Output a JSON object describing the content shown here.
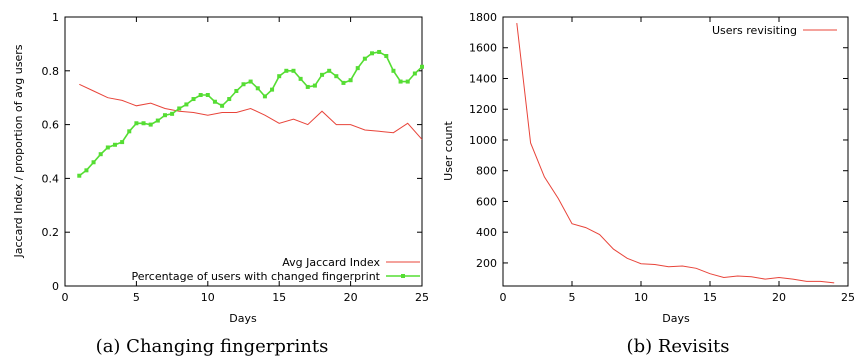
{
  "chart_data": [
    {
      "type": "line",
      "caption": "(a) Changing fingerprints",
      "xlabel": "Days",
      "ylabel": "Jaccard Index / proportion of avg users",
      "xlim": [
        0,
        25
      ],
      "ylim": [
        0,
        1
      ],
      "xticks": [
        "0",
        "5",
        "10",
        "15",
        "20",
        "25"
      ],
      "yticks": [
        "0",
        "0.2",
        "0.4",
        "0.6",
        "0.8",
        "1"
      ],
      "grid": false,
      "legend_position": "bottom-right",
      "series": [
        {
          "name": "Avg Jaccard Index",
          "color": "#e8443a",
          "marker": "none",
          "x": [
            1,
            2,
            3,
            4,
            5,
            6,
            7,
            8,
            9,
            10,
            11,
            12,
            13,
            14,
            15,
            16,
            17,
            18,
            19,
            20,
            21,
            22,
            23,
            24,
            25
          ],
          "y": [
            0.75,
            0.725,
            0.7,
            0.69,
            0.67,
            0.68,
            0.66,
            0.65,
            0.645,
            0.635,
            0.645,
            0.645,
            0.66,
            0.635,
            0.605,
            0.62,
            0.6,
            0.65,
            0.6,
            0.6,
            0.58,
            0.575,
            0.57,
            0.605,
            0.545
          ]
        },
        {
          "name": "Percentage of users with changed fingerprint",
          "color": "#55dd33",
          "marker": "square",
          "x": [
            1,
            1.5,
            2,
            2.5,
            3,
            3.5,
            4,
            4.5,
            5,
            5.5,
            6,
            6.5,
            7,
            7.5,
            8,
            8.5,
            9,
            9.5,
            10,
            10.5,
            11,
            11.5,
            12,
            12.5,
            13,
            13.5,
            14,
            14.5,
            15,
            15.5,
            16,
            16.5,
            17,
            17.5,
            18,
            18.5,
            19,
            19.5,
            20,
            20.5,
            21,
            21.5,
            22,
            22.5,
            23,
            23.5,
            24,
            24.5,
            25
          ],
          "y": [
            0.41,
            0.43,
            0.46,
            0.49,
            0.515,
            0.525,
            0.535,
            0.575,
            0.605,
            0.605,
            0.6,
            0.615,
            0.635,
            0.64,
            0.66,
            0.675,
            0.695,
            0.71,
            0.71,
            0.685,
            0.67,
            0.695,
            0.725,
            0.75,
            0.76,
            0.735,
            0.705,
            0.73,
            0.78,
            0.8,
            0.8,
            0.77,
            0.74,
            0.745,
            0.785,
            0.8,
            0.78,
            0.755,
            0.765,
            0.81,
            0.845,
            0.865,
            0.87,
            0.855,
            0.8,
            0.76,
            0.76,
            0.79,
            0.815
          ]
        }
      ]
    },
    {
      "type": "line",
      "caption": "(b) Revisits",
      "xlabel": "Days",
      "ylabel": "User count",
      "xlim": [
        0,
        25
      ],
      "ylim": [
        50,
        1800
      ],
      "xticks": [
        "0",
        "5",
        "10",
        "15",
        "20",
        "25"
      ],
      "yticks": [
        "200",
        "400",
        "600",
        "800",
        "1000",
        "1200",
        "1400",
        "1600",
        "1800"
      ],
      "grid": false,
      "legend_position": "top-right",
      "series": [
        {
          "name": "Users revisiting",
          "color": "#e8443a",
          "marker": "none",
          "x": [
            1,
            2,
            3,
            4,
            5,
            6,
            7,
            8,
            9,
            10,
            11,
            12,
            13,
            14,
            15,
            16,
            17,
            18,
            19,
            20,
            21,
            22,
            23,
            24
          ],
          "y": [
            1760,
            980,
            760,
            620,
            455,
            430,
            385,
            290,
            230,
            195,
            190,
            175,
            180,
            165,
            130,
            105,
            115,
            110,
            95,
            105,
            95,
            80,
            80,
            70
          ]
        }
      ]
    }
  ]
}
